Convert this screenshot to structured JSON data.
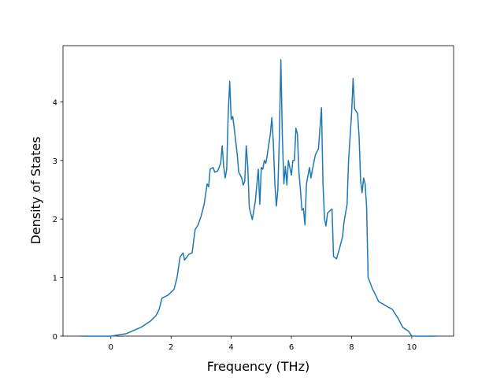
{
  "chart_data": {
    "type": "line",
    "xlabel": "Frequency (THz)",
    "ylabel": "Density of States",
    "x": [
      -1.0,
      -0.5,
      0,
      0.5,
      1.0,
      1.3,
      1.5,
      1.6,
      1.7,
      1.9,
      2.1,
      2.2,
      2.3,
      2.4,
      2.45,
      2.6,
      2.7,
      2.8,
      2.9,
      3.0,
      3.1,
      3.2,
      3.25,
      3.3,
      3.4,
      3.45,
      3.55,
      3.65,
      3.7,
      3.75,
      3.8,
      3.85,
      3.9,
      3.95,
      4.0,
      4.05,
      4.1,
      4.2,
      4.25,
      4.35,
      4.4,
      4.45,
      4.5,
      4.55,
      4.6,
      4.7,
      4.8,
      4.9,
      4.95,
      5.0,
      5.05,
      5.1,
      5.15,
      5.2,
      5.3,
      5.35,
      5.4,
      5.45,
      5.5,
      5.55,
      5.6,
      5.65,
      5.7,
      5.75,
      5.8,
      5.85,
      5.9,
      6.0,
      6.05,
      6.1,
      6.15,
      6.2,
      6.25,
      6.3,
      6.35,
      6.4,
      6.45,
      6.5,
      6.6,
      6.65,
      6.7,
      6.8,
      6.9,
      7.0,
      7.05,
      7.1,
      7.15,
      7.2,
      7.3,
      7.35,
      7.4,
      7.5,
      7.6,
      7.7,
      7.75,
      7.85,
      7.9,
      8.0,
      8.05,
      8.1,
      8.2,
      8.25,
      8.3,
      8.35,
      8.4,
      8.45,
      8.5,
      8.55,
      8.7,
      8.8,
      8.9,
      9.2,
      9.35,
      9.55,
      9.7,
      9.9,
      10.0,
      10.5,
      10.8
    ],
    "series": [
      {
        "color": "#1f77b4",
        "values": [
          0,
          0,
          0,
          0.04,
          0.15,
          0.25,
          0.35,
          0.45,
          0.65,
          0.7,
          0.8,
          1.0,
          1.35,
          1.42,
          1.3,
          1.4,
          1.42,
          1.82,
          1.9,
          2.05,
          2.25,
          2.6,
          2.55,
          2.85,
          2.88,
          2.8,
          2.82,
          2.95,
          3.25,
          2.9,
          2.7,
          2.85,
          3.8,
          4.35,
          3.7,
          3.75,
          3.55,
          3.1,
          2.8,
          2.7,
          2.58,
          2.65,
          3.25,
          2.9,
          2.2,
          1.99,
          2.3,
          2.85,
          2.25,
          2.88,
          2.85,
          3.0,
          2.95,
          3.1,
          3.45,
          3.73,
          3.3,
          2.6,
          2.22,
          2.5,
          3.4,
          4.72,
          3.4,
          2.6,
          2.9,
          2.58,
          3.0,
          2.75,
          3.0,
          3.0,
          3.55,
          3.45,
          2.8,
          2.5,
          2.15,
          2.18,
          1.9,
          2.6,
          2.88,
          2.7,
          2.85,
          3.1,
          3.2,
          3.9,
          2.6,
          2.0,
          1.88,
          2.1,
          2.15,
          2.17,
          1.36,
          1.32,
          1.5,
          1.7,
          1.95,
          2.25,
          3.0,
          3.8,
          4.4,
          3.88,
          3.8,
          3.4,
          2.65,
          2.45,
          2.7,
          2.6,
          2.2,
          1.0,
          0.8,
          0.7,
          0.59,
          0.5,
          0.46,
          0.3,
          0.15,
          0.08,
          0,
          0,
          0
        ]
      }
    ],
    "xlim": [
      -1.59,
      11.39
    ],
    "ylim": [
      0,
      4.96
    ],
    "xticks": [
      0,
      2,
      4,
      6,
      8,
      10
    ],
    "yticks": [
      0,
      1,
      2,
      3,
      4
    ]
  }
}
